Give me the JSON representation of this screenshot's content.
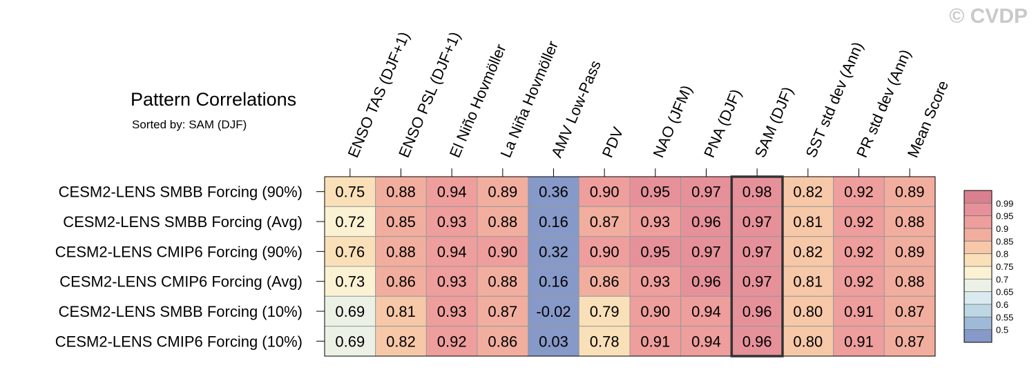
{
  "watermark": "© CVDP",
  "chart_data": {
    "type": "heatmap",
    "title": "Pattern Correlations",
    "subtitle": "Sorted by: SAM (DJF)",
    "columns": [
      "ENSO TAS (DJF+1)",
      "ENSO PSL (DJF+1)",
      "El Niño Hovmöller",
      "La Niña Hovmöller",
      "AMV Low-Pass",
      "PDV",
      "NAO (JFM)",
      "PNA (DJF)",
      "SAM (DJF)",
      "SST std dev (Ann)",
      "PR std dev (Ann)",
      "Mean Score"
    ],
    "rows": [
      "CESM2-LENS SMBB Forcing (90%)",
      "CESM2-LENS SMBB Forcing (Avg)",
      "CESM2-LENS CMIP6 Forcing (90%)",
      "CESM2-LENS CMIP6 Forcing (Avg)",
      "CESM2-LENS SMBB Forcing (10%)",
      "CESM2-LENS CMIP6 Forcing (10%)"
    ],
    "values": [
      [
        "0.75",
        "0.88",
        "0.94",
        "0.89",
        "0.36",
        "0.90",
        "0.95",
        "0.97",
        "0.98",
        "0.82",
        "0.92",
        "0.89"
      ],
      [
        "0.72",
        "0.85",
        "0.93",
        "0.88",
        "0.16",
        "0.87",
        "0.93",
        "0.96",
        "0.97",
        "0.81",
        "0.92",
        "0.88"
      ],
      [
        "0.76",
        "0.88",
        "0.94",
        "0.90",
        "0.32",
        "0.90",
        "0.95",
        "0.97",
        "0.97",
        "0.82",
        "0.92",
        "0.89"
      ],
      [
        "0.73",
        "0.86",
        "0.93",
        "0.88",
        "0.16",
        "0.86",
        "0.93",
        "0.96",
        "0.97",
        "0.81",
        "0.92",
        "0.88"
      ],
      [
        "0.69",
        "0.81",
        "0.93",
        "0.87",
        "-0.02",
        "0.79",
        "0.90",
        "0.94",
        "0.96",
        "0.80",
        "0.91",
        "0.87"
      ],
      [
        "0.69",
        "0.82",
        "0.92",
        "0.86",
        "0.03",
        "0.78",
        "0.91",
        "0.94",
        "0.96",
        "0.80",
        "0.91",
        "0.87"
      ]
    ],
    "highlighted_column": "SAM (DJF)",
    "colorbar": {
      "labels": [
        "0.99",
        "0.95",
        "0.9",
        "0.85",
        "0.8",
        "0.75",
        "0.7",
        "0.65",
        "0.6",
        "0.55",
        "0.5"
      ],
      "colors": [
        "#d8808f",
        "#e6919a",
        "#ee9e9c",
        "#f1ae9e",
        "#f6c8a8",
        "#fae0b8",
        "#fbf2d4",
        "#ecf1e6",
        "#d9ebee",
        "#bdd7e5",
        "#9fbad9",
        "#8699c8"
      ]
    }
  }
}
